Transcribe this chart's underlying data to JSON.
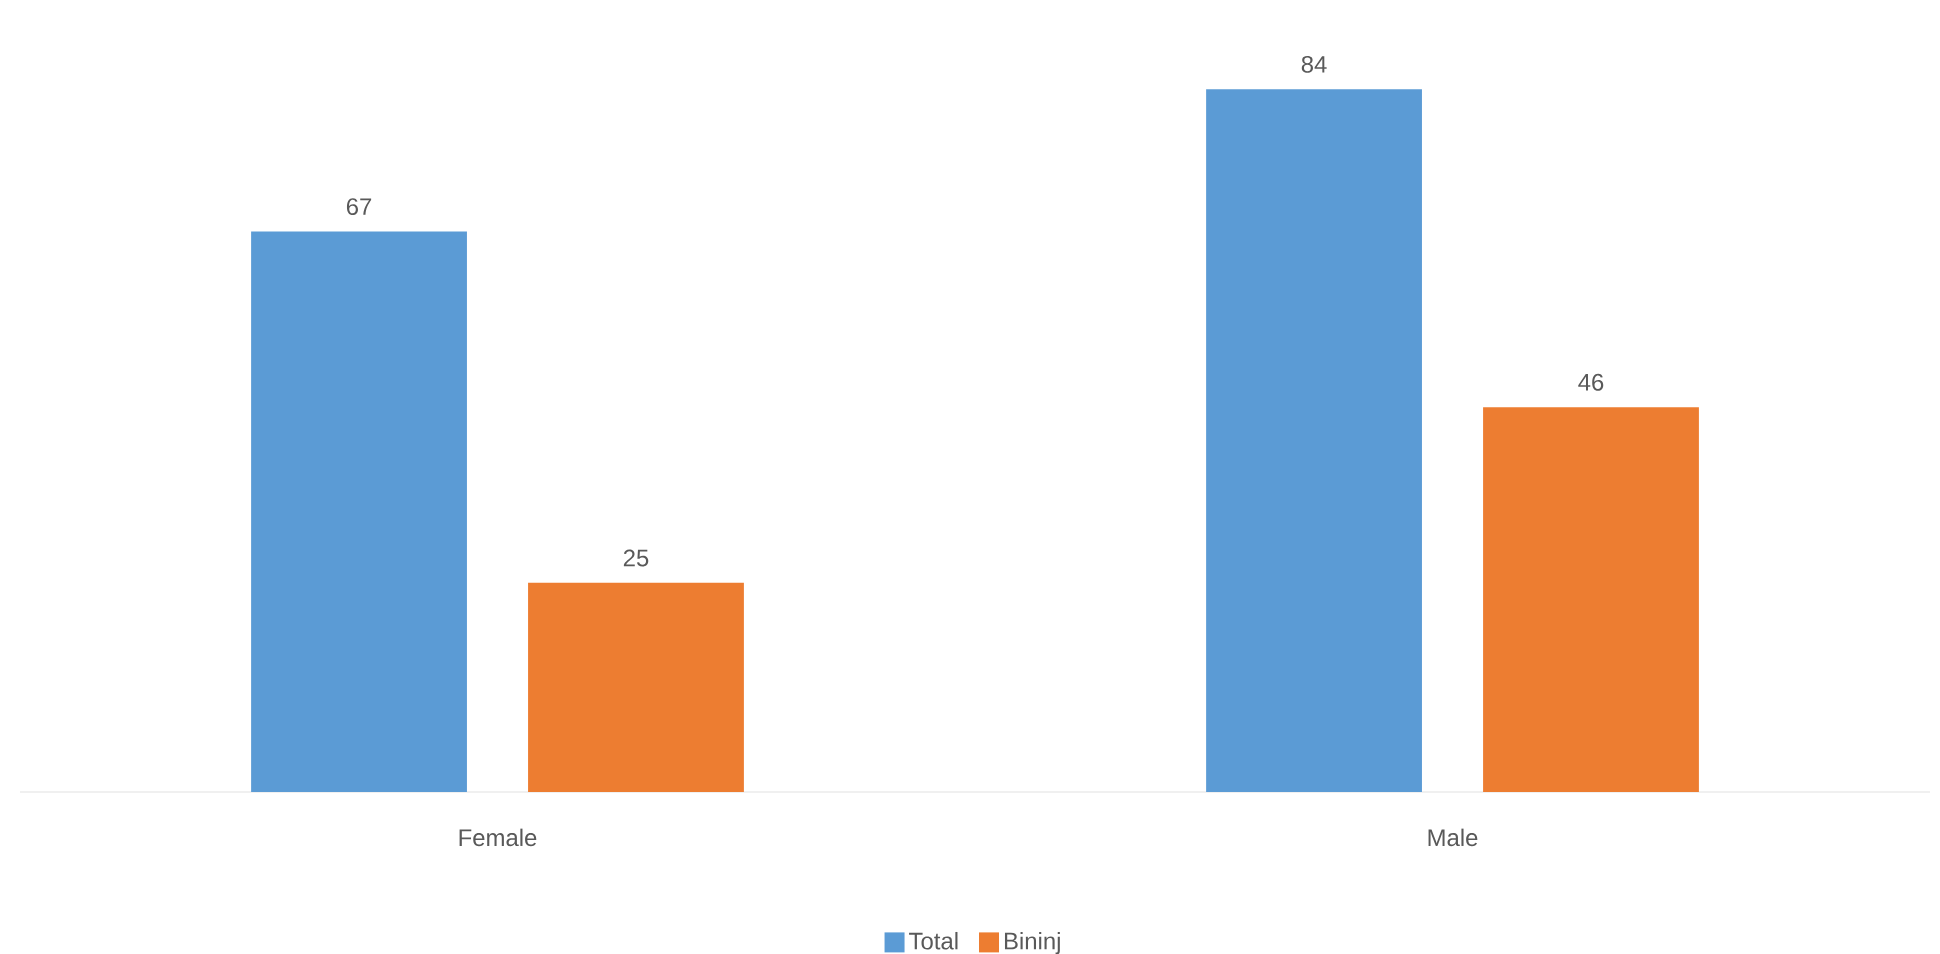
{
  "chart_data": {
    "type": "bar",
    "categories": [
      "Female",
      "Male"
    ],
    "series": [
      {
        "name": "Total",
        "color": "#5b9bd5",
        "values": [
          67,
          84
        ]
      },
      {
        "name": "Bininj",
        "color": "#ed7d31",
        "values": [
          25,
          46
        ]
      }
    ],
    "data_labels": true,
    "legend": "bottom"
  }
}
